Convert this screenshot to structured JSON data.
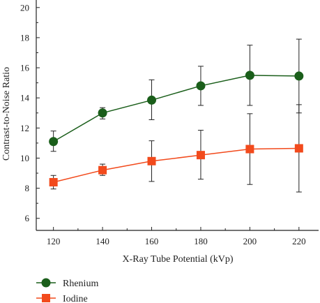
{
  "chart_data": {
    "type": "line",
    "x": [
      120,
      140,
      160,
      180,
      200,
      220
    ],
    "xlabel": "X-Ray Tube Potential (kVp)",
    "ylabel": "Contrast-to-Noise Ratio",
    "xlim": [
      113,
      228
    ],
    "ylim": [
      5.2,
      20.5
    ],
    "xticks": [
      120,
      140,
      160,
      180,
      200,
      220
    ],
    "yticks": [
      6,
      8,
      10,
      12,
      14,
      16,
      18,
      20
    ],
    "grid": false,
    "legend_position": "bottom-left",
    "series": [
      {
        "name": "Rhenium",
        "marker": "circle",
        "color": "#1a5e1a",
        "values": [
          11.1,
          13.0,
          13.85,
          14.8,
          15.5,
          15.45
        ],
        "err_low": [
          10.45,
          12.6,
          12.55,
          13.5,
          13.5,
          13.0
        ],
        "err_high": [
          11.8,
          13.35,
          15.2,
          16.1,
          17.5,
          17.9
        ]
      },
      {
        "name": "Iodine",
        "marker": "square",
        "color": "#f24a1c",
        "values": [
          8.4,
          9.2,
          9.8,
          10.2,
          10.6,
          10.65
        ],
        "err_low": [
          7.95,
          8.85,
          8.45,
          8.6,
          8.25,
          7.75
        ],
        "err_high": [
          8.85,
          9.6,
          11.15,
          11.85,
          12.95,
          13.55
        ]
      }
    ]
  }
}
